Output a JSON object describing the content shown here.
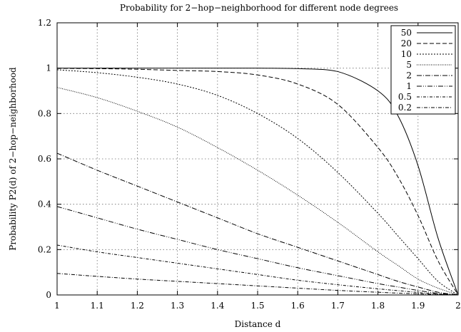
{
  "chart_data": {
    "type": "line",
    "title": "Probability for 2−hop−neighborhood for different node degrees",
    "xlabel": "Distance d",
    "ylabel": "Probability P2(d) of 2−hop−neighborhood",
    "xlim": [
      1,
      2
    ],
    "ylim": [
      0,
      1.2
    ],
    "x_ticks": [
      "1",
      "1.1",
      "1.2",
      "1.3",
      "1.4",
      "1.5",
      "1.6",
      "1.7",
      "1.8",
      "1.9",
      "2"
    ],
    "y_ticks": [
      "0",
      "0.2",
      "0.4",
      "0.6",
      "0.8",
      "1",
      "1.2"
    ],
    "grid": true,
    "legend_position": "top-right",
    "x": [
      1.0,
      1.1,
      1.2,
      1.3,
      1.4,
      1.5,
      1.6,
      1.7,
      1.8,
      1.85,
      1.9,
      1.95,
      2.0
    ],
    "series": [
      {
        "name": "50",
        "dash": "",
        "values": [
          1.0,
          1.0,
          1.0,
          1.0,
          1.0,
          1.0,
          0.998,
          0.985,
          0.9,
          0.79,
          0.57,
          0.25,
          0.0
        ]
      },
      {
        "name": "20",
        "dash": "6 3",
        "values": [
          0.999,
          0.998,
          0.995,
          0.99,
          0.985,
          0.97,
          0.93,
          0.84,
          0.65,
          0.52,
          0.35,
          0.15,
          0.0
        ]
      },
      {
        "name": "10",
        "dash": "2 2",
        "values": [
          0.993,
          0.98,
          0.96,
          0.93,
          0.88,
          0.8,
          0.69,
          0.54,
          0.36,
          0.26,
          0.16,
          0.06,
          0.0
        ]
      },
      {
        "name": "5",
        "dash": "1 1.5",
        "values": [
          0.915,
          0.87,
          0.81,
          0.74,
          0.65,
          0.55,
          0.44,
          0.32,
          0.19,
          0.13,
          0.07,
          0.03,
          0.0
        ]
      },
      {
        "name": "2",
        "dash": "7 2 1 2",
        "values": [
          0.625,
          0.55,
          0.48,
          0.41,
          0.34,
          0.27,
          0.21,
          0.15,
          0.09,
          0.06,
          0.035,
          0.012,
          0.0
        ]
      },
      {
        "name": "1",
        "dash": "7 2 1 2 1 2",
        "values": [
          0.39,
          0.34,
          0.29,
          0.245,
          0.2,
          0.16,
          0.12,
          0.085,
          0.05,
          0.035,
          0.02,
          0.007,
          0.0
        ]
      },
      {
        "name": "0.5",
        "dash": "4 2 1 2",
        "values": [
          0.22,
          0.19,
          0.165,
          0.14,
          0.115,
          0.09,
          0.065,
          0.045,
          0.027,
          0.019,
          0.011,
          0.004,
          0.0
        ]
      },
      {
        "name": "0.2",
        "dash": "5 2 1 2",
        "values": [
          0.095,
          0.082,
          0.07,
          0.06,
          0.05,
          0.04,
          0.03,
          0.02,
          0.012,
          0.008,
          0.005,
          0.002,
          0.0
        ]
      }
    ]
  }
}
